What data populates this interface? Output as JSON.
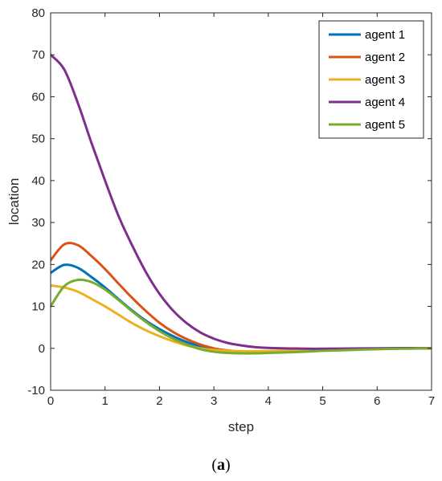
{
  "chart_data": {
    "type": "line",
    "xlabel": "step",
    "ylabel": "location",
    "xlim": [
      0,
      7
    ],
    "ylim": [
      -10,
      80
    ],
    "xticks": [
      0,
      1,
      2,
      3,
      4,
      5,
      6,
      7
    ],
    "yticks": [
      -10,
      0,
      10,
      20,
      30,
      40,
      50,
      60,
      70,
      80
    ],
    "grid": false,
    "legend_position": "top-right",
    "x": [
      0,
      0.25,
      0.5,
      0.75,
      1,
      1.25,
      1.5,
      1.75,
      2,
      2.25,
      2.5,
      2.75,
      3,
      3.25,
      3.5,
      3.75,
      4,
      4.25,
      4.5,
      4.75,
      5,
      5.5,
      6,
      6.5,
      7
    ],
    "series": [
      {
        "name": "agent 1",
        "color": "#0072BD",
        "values": [
          18.0,
          19.9,
          19.2,
          17.0,
          14.5,
          11.7,
          9.0,
          6.6,
          4.6,
          2.9,
          1.5,
          0.5,
          -0.2,
          -0.6,
          -0.85,
          -0.9,
          -0.85,
          -0.75,
          -0.6,
          -0.5,
          -0.4,
          -0.25,
          -0.1,
          0.0,
          0.0
        ]
      },
      {
        "name": "agent 2",
        "color": "#D95319",
        "values": [
          21.0,
          24.8,
          24.6,
          22.0,
          18.9,
          15.4,
          12.0,
          8.9,
          6.1,
          3.9,
          2.2,
          0.9,
          0.0,
          -0.5,
          -0.8,
          -0.9,
          -0.85,
          -0.75,
          -0.6,
          -0.5,
          -0.4,
          -0.25,
          -0.1,
          0.0,
          0.0
        ]
      },
      {
        "name": "agent 3",
        "color": "#EDB120",
        "values": [
          15.0,
          14.5,
          13.5,
          11.8,
          10.0,
          8.0,
          6.0,
          4.3,
          2.9,
          1.7,
          0.7,
          0.0,
          -0.4,
          -0.6,
          -0.7,
          -0.7,
          -0.65,
          -0.6,
          -0.5,
          -0.4,
          -0.3,
          -0.2,
          -0.1,
          0.0,
          0.0
        ]
      },
      {
        "name": "agent 4",
        "color": "#7E2F8E",
        "values": [
          70.0,
          66.5,
          58.5,
          49.0,
          40.0,
          31.5,
          24.5,
          18.2,
          13.0,
          9.0,
          6.0,
          3.8,
          2.3,
          1.3,
          0.7,
          0.3,
          0.1,
          0.0,
          -0.05,
          -0.1,
          -0.1,
          -0.05,
          0.0,
          0.05,
          0.0
        ]
      },
      {
        "name": "agent 5",
        "color": "#77AC30",
        "values": [
          10.0,
          14.8,
          16.3,
          15.8,
          14.0,
          11.5,
          8.8,
          6.3,
          4.1,
          2.3,
          0.9,
          -0.2,
          -0.8,
          -1.1,
          -1.2,
          -1.2,
          -1.1,
          -1.0,
          -0.9,
          -0.75,
          -0.6,
          -0.4,
          -0.2,
          -0.1,
          0.0
        ]
      }
    ]
  },
  "caption": {
    "open": "(",
    "letter": "a",
    "close": ")"
  }
}
